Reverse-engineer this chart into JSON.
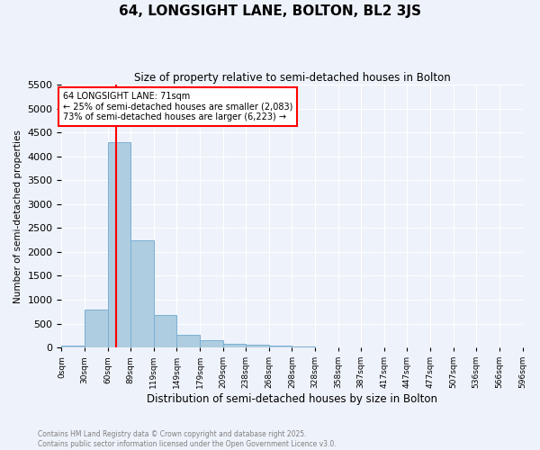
{
  "title": "64, LONGSIGHT LANE, BOLTON, BL2 3JS",
  "subtitle": "Size of property relative to semi-detached houses in Bolton",
  "xlabel": "Distribution of semi-detached houses by size in Bolton",
  "ylabel": "Number of semi-detached properties",
  "bar_color": "#aecde0",
  "bar_edge_color": "#7bafd4",
  "background_color": "#eef2fa",
  "grid_color": "#ffffff",
  "property_size": 71,
  "property_line_color": "red",
  "annotation_title": "64 LONGSIGHT LANE: 71sqm",
  "annotation_line1": "← 25% of semi-detached houses are smaller (2,083)",
  "annotation_line2": "73% of semi-detached houses are larger (6,223) →",
  "ylim": [
    0,
    5500
  ],
  "yticks": [
    0,
    500,
    1000,
    1500,
    2000,
    2500,
    3000,
    3500,
    4000,
    4500,
    5000,
    5500
  ],
  "bins": [
    0,
    30,
    60,
    89,
    119,
    149,
    179,
    209,
    238,
    268,
    298,
    328,
    358,
    387,
    417,
    447,
    477,
    507,
    536,
    566,
    596
  ],
  "bin_labels": [
    "0sqm",
    "30sqm",
    "60sqm",
    "89sqm",
    "119sqm",
    "149sqm",
    "179sqm",
    "209sqm",
    "238sqm",
    "268sqm",
    "298sqm",
    "328sqm",
    "358sqm",
    "387sqm",
    "417sqm",
    "447sqm",
    "477sqm",
    "507sqm",
    "536sqm",
    "566sqm",
    "596sqm"
  ],
  "values": [
    30,
    800,
    4300,
    2250,
    680,
    260,
    145,
    80,
    55,
    30,
    15,
    5,
    3,
    2,
    1,
    1,
    0,
    0,
    0,
    0
  ],
  "footnote1": "Contains HM Land Registry data © Crown copyright and database right 2025.",
  "footnote2": "Contains public sector information licensed under the Open Government Licence v3.0."
}
